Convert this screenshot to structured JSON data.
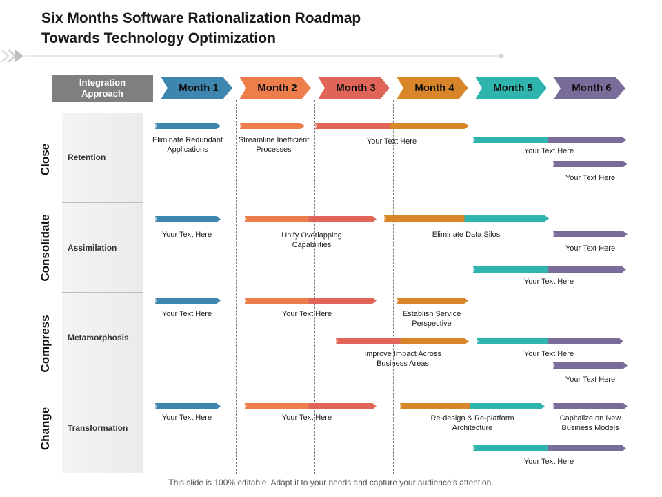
{
  "title": {
    "line1": "Six Months Software Rationalization Roadmap",
    "line2": "Towards Technology Optimization"
  },
  "integration_approach": {
    "line1": "Integration",
    "line2": "Approach"
  },
  "months": [
    {
      "label": "Month 1",
      "color": "#3e86b0"
    },
    {
      "label": "Month 2",
      "color": "#ee7d4c"
    },
    {
      "label": "Month 3",
      "color": "#e06457"
    },
    {
      "label": "Month 4",
      "color": "#d9862b"
    },
    {
      "label": "Month 5",
      "color": "#2fb5ad"
    },
    {
      "label": "Month 6",
      "color": "#7a6c9a"
    }
  ],
  "phases": [
    {
      "name": "Close",
      "category": "Retention"
    },
    {
      "name": "Consolidate",
      "category": "Assimilation"
    },
    {
      "name": "Compress",
      "category": "Metamorphosis"
    },
    {
      "name": "Change",
      "category": "Transformation"
    }
  ],
  "tasks": {
    "close": [
      {
        "line1": "Eliminate Redundant",
        "line2": "Applications",
        "start_month": 1,
        "end_month": 1
      },
      {
        "line1": "Streamline Inefficient",
        "line2": "Processes",
        "start_month": 2,
        "end_month": 2
      },
      {
        "line1": "Your Text Here",
        "start_month": 3,
        "end_month": 4
      },
      {
        "line1": "Your Text Here",
        "start_month": 5,
        "end_month": 6
      },
      {
        "line1": "Your Text Here",
        "start_month": 6,
        "end_month": 6
      }
    ],
    "consolidate": [
      {
        "line1": "Your Text Here",
        "start_month": 1,
        "end_month": 1
      },
      {
        "line1": "Unify Overlapping",
        "line2": "Capabilities",
        "start_month": 2,
        "end_month": 3
      },
      {
        "line1": "Eliminate Data Silos",
        "start_month": 4,
        "end_month": 5
      },
      {
        "line1": "Your Text Here",
        "start_month": 6,
        "end_month": 6
      },
      {
        "line1": "Your Text Here",
        "start_month": 5,
        "end_month": 6
      }
    ],
    "compress": [
      {
        "line1": "Your Text Here",
        "start_month": 1,
        "end_month": 1
      },
      {
        "line1": "Your Text Here",
        "start_month": 2,
        "end_month": 3
      },
      {
        "line1": "Establish Service",
        "line2": "Perspective",
        "start_month": 4,
        "end_month": 4
      },
      {
        "line1": "Improve Impact Across",
        "line2": "Business Areas",
        "start_month": 3,
        "end_month": 4
      },
      {
        "line1": "Your Text Here",
        "start_month": 5,
        "end_month": 6
      },
      {
        "line1": "Your Text Here",
        "start_month": 6,
        "end_month": 6
      }
    ],
    "change": [
      {
        "line1": "Your Text Here",
        "start_month": 1,
        "end_month": 1
      },
      {
        "line1": "Your Text Here",
        "start_month": 2,
        "end_month": 3
      },
      {
        "line1": "Re-design & Re-platform",
        "line2": "Architecture",
        "start_month": 4,
        "end_month": 5
      },
      {
        "line1": "Capitalize on New",
        "line2": "Business Models",
        "start_month": 6,
        "end_month": 6
      },
      {
        "line1": "Your Text Here",
        "start_month": 5,
        "end_month": 6
      }
    ]
  },
  "footer": "This slide is 100% editable. Adapt it to your needs and capture your audience's attention."
}
